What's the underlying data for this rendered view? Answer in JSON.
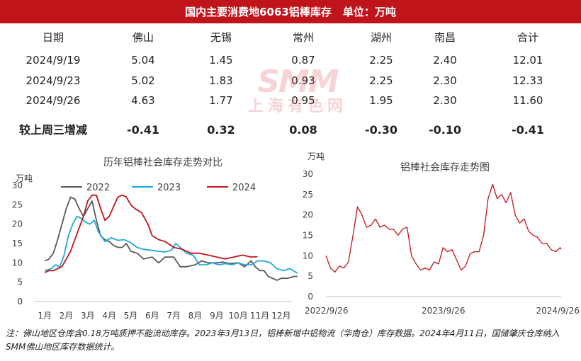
{
  "banner": {
    "title": "国内主要消费地6063铝棒库存",
    "unit": "单位：万吨"
  },
  "table": {
    "headers": [
      "日期",
      "佛山",
      "无锡",
      "常州",
      "湖州",
      "南昌",
      "合计"
    ],
    "rows": [
      [
        "2024/9/19",
        "5.04",
        "1.45",
        "0.87",
        "2.25",
        "2.40",
        "12.01"
      ],
      [
        "2024/9/23",
        "5.02",
        "1.83",
        "0.93",
        "2.25",
        "2.30",
        "12.33"
      ],
      [
        "2024/9/26",
        "4.63",
        "1.77",
        "0.95",
        "1.95",
        "2.30",
        "11.60"
      ]
    ],
    "delta_row": [
      "较上周三增减",
      "-0.41",
      "0.32",
      "0.08",
      "-0.30",
      "-0.10",
      "-0.41"
    ]
  },
  "watermark": {
    "logo": "SMM",
    "name": "上海有色网"
  },
  "chart_data": [
    {
      "type": "line",
      "title": "历年铝棒社会库存走势对比",
      "ylabel": "万吨",
      "ylim": [
        0,
        30
      ],
      "yticks": [
        "0",
        "5",
        "10",
        "15",
        "20",
        "25",
        "30"
      ],
      "categories": [
        "1月",
        "2月",
        "3月",
        "4月",
        "5月",
        "6月",
        "7月",
        "8月",
        "9月",
        "10月",
        "11月",
        "12月"
      ],
      "grid": false,
      "legend": "top",
      "series": [
        {
          "name": "2022",
          "color": "#595959",
          "x": [
            0,
            0.2,
            0.4,
            0.6,
            0.8,
            1.0,
            1.2,
            1.4,
            1.6,
            1.8,
            2.0,
            2.2,
            2.4,
            2.6,
            2.8,
            3.0,
            3.2,
            3.4,
            3.6,
            3.8,
            4.0,
            4.3,
            4.6,
            5.0,
            5.3,
            5.6,
            6.0,
            6.3,
            6.6,
            7.0,
            7.3,
            7.6,
            8.0,
            8.3,
            8.6,
            9.0,
            9.3,
            9.6,
            9.8,
            10.0,
            10.2,
            10.4,
            10.6,
            10.8,
            11.0,
            11.3,
            11.6,
            11.9
          ],
          "y": [
            10.5,
            11,
            12.5,
            16,
            20,
            24,
            27,
            26.5,
            24,
            22,
            24,
            26,
            21,
            17,
            16,
            15.5,
            14.5,
            14,
            14,
            15,
            13,
            12.5,
            11,
            11.5,
            10,
            11.5,
            11.5,
            9,
            9,
            9.5,
            10.5,
            10,
            10,
            10.2,
            9.8,
            10,
            9,
            10.5,
            9,
            8,
            8,
            6.5,
            6,
            5.5,
            6,
            6,
            6.5,
            6.5
          ]
        },
        {
          "name": "2023",
          "color": "#1fa8d8",
          "x": [
            0,
            0.3,
            0.5,
            0.7,
            0.9,
            1.1,
            1.3,
            1.5,
            1.7,
            1.9,
            2.1,
            2.3,
            2.5,
            2.8,
            3.1,
            3.4,
            3.7,
            4.0,
            4.3,
            4.6,
            5.0,
            5.3,
            5.6,
            5.9,
            6.1,
            6.3,
            6.6,
            6.9,
            7.2,
            7.5,
            7.8,
            8.1,
            8.4,
            8.7,
            9.0,
            9.3,
            9.6,
            9.9,
            10.2,
            10.5,
            10.8,
            11.1,
            11.4,
            11.7,
            12.0
          ],
          "y": [
            8,
            8.5,
            9.5,
            9,
            12,
            17,
            20,
            22,
            21.5,
            20.5,
            20,
            21,
            18,
            15.5,
            16.5,
            15.8,
            16,
            15.2,
            14,
            13.5,
            13.2,
            13,
            12.8,
            13.3,
            15,
            14,
            12.5,
            12,
            9.5,
            9.5,
            10,
            9.5,
            9.8,
            9.5,
            10,
            9.5,
            9.5,
            10.5,
            10.5,
            10,
            8.5,
            8,
            8.5,
            7.5,
            6.5
          ]
        },
        {
          "name": "2024",
          "color": "#c0141b",
          "x": [
            0,
            0.2,
            0.4,
            0.6,
            0.8,
            1.0,
            1.2,
            1.4,
            1.6,
            1.8,
            2.0,
            2.2,
            2.4,
            2.6,
            2.8,
            3.0,
            3.2,
            3.4,
            3.6,
            3.8,
            4.0,
            4.2,
            4.5,
            4.8,
            5.0,
            5.3,
            5.6,
            6.0,
            6.4,
            6.8,
            7.2,
            7.6,
            8.0,
            8.4,
            8.8,
            9.2,
            9.6,
            9.9
          ],
          "y": [
            7.5,
            8,
            8,
            8.5,
            9,
            11,
            13,
            16,
            19,
            22,
            26,
            27.5,
            27.5,
            24,
            21,
            22,
            24.5,
            27,
            27.5,
            27,
            25,
            24,
            23,
            20,
            17,
            16,
            15.5,
            14,
            13.5,
            12.5,
            12.5,
            12,
            11.5,
            11,
            11.5,
            12,
            11.5,
            11.6
          ]
        }
      ]
    },
    {
      "type": "line",
      "title": "铝棒社会库存走势图",
      "ylabel": "万吨",
      "ylim": [
        0,
        30
      ],
      "yticks": [
        "0",
        "5",
        "10",
        "15",
        "20",
        "25",
        "30"
      ],
      "xticks": [
        "2022/9/26",
        "2023/9/26",
        "2024/9/26"
      ],
      "grid": false,
      "series": [
        {
          "color": "#c0141b",
          "x": [
            "2022/9/26",
            "2022/10/10",
            "2022/10/24",
            "2022/11/7",
            "2022/11/21",
            "2022/12/5",
            "2022/12/19",
            "2023/1/2",
            "2023/1/16",
            "2023/1/30",
            "2023/2/13",
            "2023/2/27",
            "2023/3/13",
            "2023/3/27",
            "2023/4/10",
            "2023/4/24",
            "2023/5/8",
            "2023/5/22",
            "2023/6/5",
            "2023/6/19",
            "2023/7/3",
            "2023/7/17",
            "2023/7/31",
            "2023/8/14",
            "2023/8/28",
            "2023/9/11",
            "2023/9/25",
            "2023/10/9",
            "2023/10/23",
            "2023/11/6",
            "2023/11/20",
            "2023/12/4",
            "2023/12/18",
            "2024/1/1",
            "2024/1/15",
            "2024/1/29",
            "2024/2/12",
            "2024/2/26",
            "2024/3/11",
            "2024/3/25",
            "2024/4/8",
            "2024/4/22",
            "2024/5/6",
            "2024/5/20",
            "2024/6/3",
            "2024/6/17",
            "2024/7/1",
            "2024/7/15",
            "2024/7/29",
            "2024/8/12",
            "2024/8/26",
            "2024/9/9",
            "2024/9/23",
            "2024/9/26"
          ],
          "y": [
            10,
            7,
            6,
            7.5,
            7,
            8.5,
            15,
            22,
            20,
            17,
            17.5,
            19,
            17,
            17.5,
            16.5,
            16.5,
            15,
            16.5,
            17,
            10,
            8,
            6.5,
            7,
            6.5,
            8.5,
            8,
            12,
            11,
            11.5,
            9,
            6.5,
            7.5,
            10.5,
            11,
            11,
            15,
            24,
            27.5,
            24,
            25,
            23,
            25.5,
            20,
            18,
            19,
            16,
            15,
            14.5,
            13,
            13,
            11.5,
            11,
            12,
            11.6
          ]
        }
      ]
    }
  ],
  "footnote": "注：佛山地区仓库含0.18万吨质押不能流动库存。2023年3月13日，铝棒新增中铝物流（华南仓）库存数据。2024年4月11日，国储肇庆仓库纳入SMM佛山地区库存数据统计。"
}
